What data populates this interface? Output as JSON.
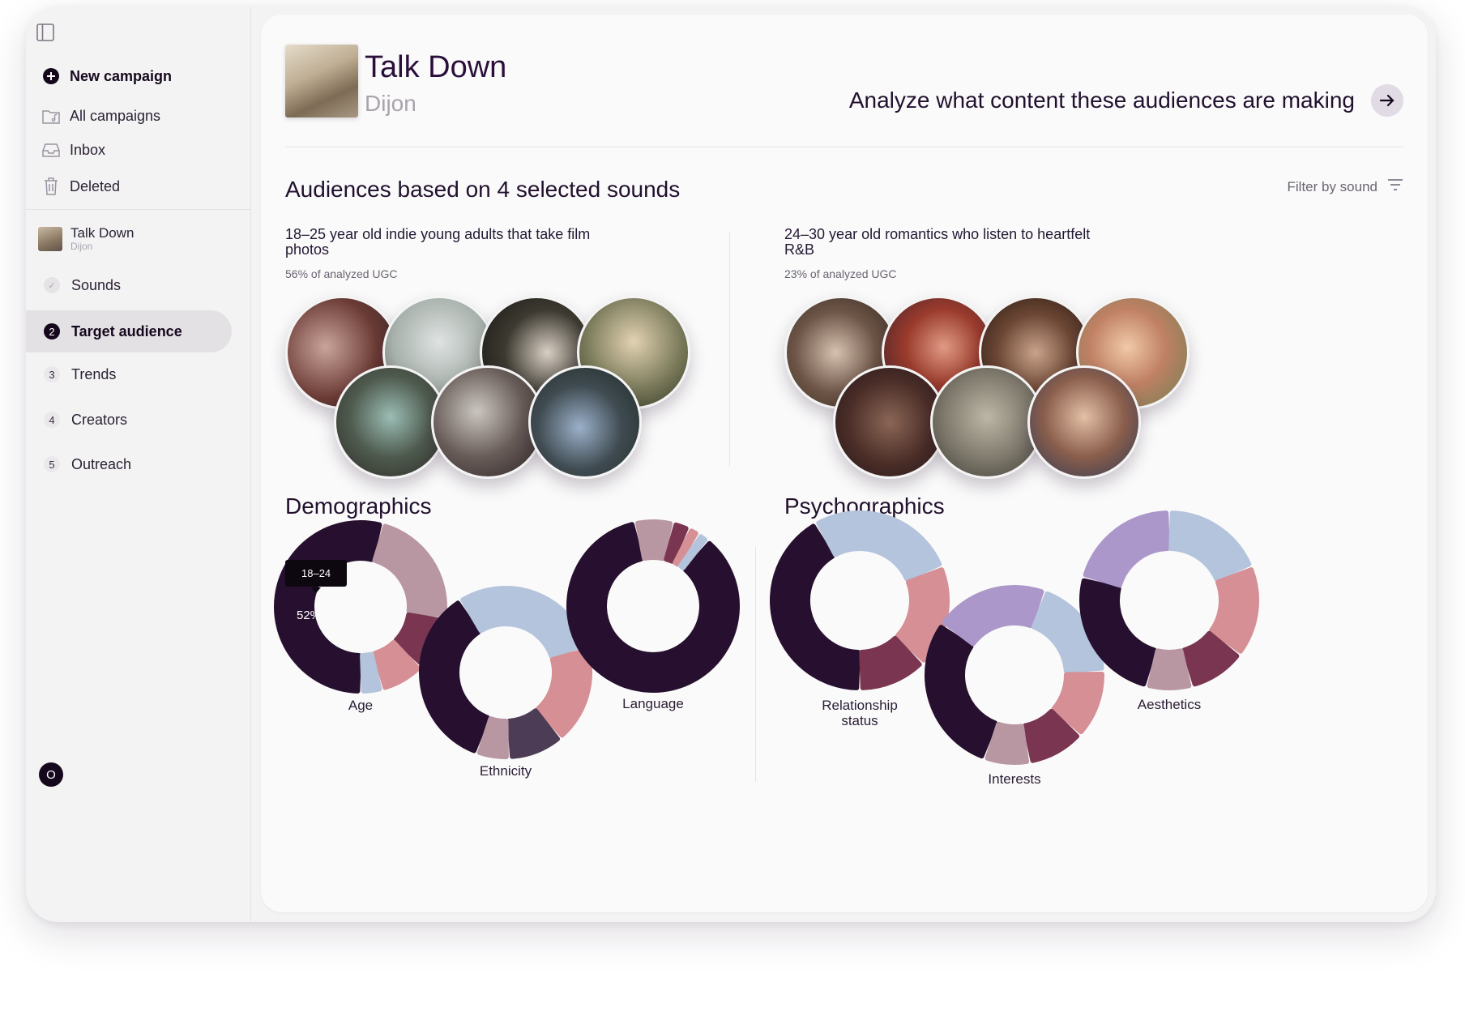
{
  "sidebar": {
    "new_campaign": "New campaign",
    "all_campaigns": "All campaigns",
    "inbox": "Inbox",
    "deleted": "Deleted",
    "campaign": {
      "title": "Talk Down",
      "artist": "Dijon"
    },
    "steps": [
      {
        "num": "",
        "label": "Sounds",
        "done": true
      },
      {
        "num": "2",
        "label": "Target audience",
        "active": true
      },
      {
        "num": "3",
        "label": "Trends"
      },
      {
        "num": "4",
        "label": "Creators"
      },
      {
        "num": "5",
        "label": "Outreach"
      }
    ],
    "user_initial": "O"
  },
  "header": {
    "title": "Talk Down",
    "artist": "Dijon",
    "analyze_link": "Analyze what content these audiences are making"
  },
  "audiences": {
    "section_title": "Audiences based on 4 selected sounds",
    "filter_label": "Filter by sound",
    "groups": [
      {
        "title": "18–25 year old indie young adults that take film photos",
        "pct": "56% of analyzed UGC"
      },
      {
        "title": "24–30 year old romantics who listen to heartfelt R&B",
        "pct": "23% of analyzed UGC"
      }
    ]
  },
  "demographics": {
    "title": "Demographics",
    "tooltip": {
      "label": "18–24",
      "value": "52%"
    },
    "charts": [
      {
        "label": "Age",
        "segments": [
          52,
          22,
          10,
          8,
          4
        ]
      },
      {
        "label": "Ethnicity",
        "segments": [
          34,
          28,
          18,
          10,
          6
        ]
      },
      {
        "label": "Language",
        "segments": [
          82,
          7,
          3,
          2,
          2
        ]
      }
    ]
  },
  "psychographics": {
    "title": "Psychographics",
    "charts": [
      {
        "label": "Relationship status",
        "segments": [
          40,
          26,
          18,
          12
        ]
      },
      {
        "label": "Interests",
        "segments": [
          28,
          20,
          18,
          12,
          10,
          8
        ]
      },
      {
        "label": "Aesthetics",
        "segments": [
          24,
          20,
          18,
          16,
          10,
          8
        ]
      }
    ]
  },
  "colors": {
    "dark": "#27102f",
    "mauve": "#b897a3",
    "plum": "#7a3550",
    "pink": "#d58f95",
    "blue": "#b3c4dc",
    "lavender": "#ab97c9",
    "slate": "#4d3c55"
  }
}
